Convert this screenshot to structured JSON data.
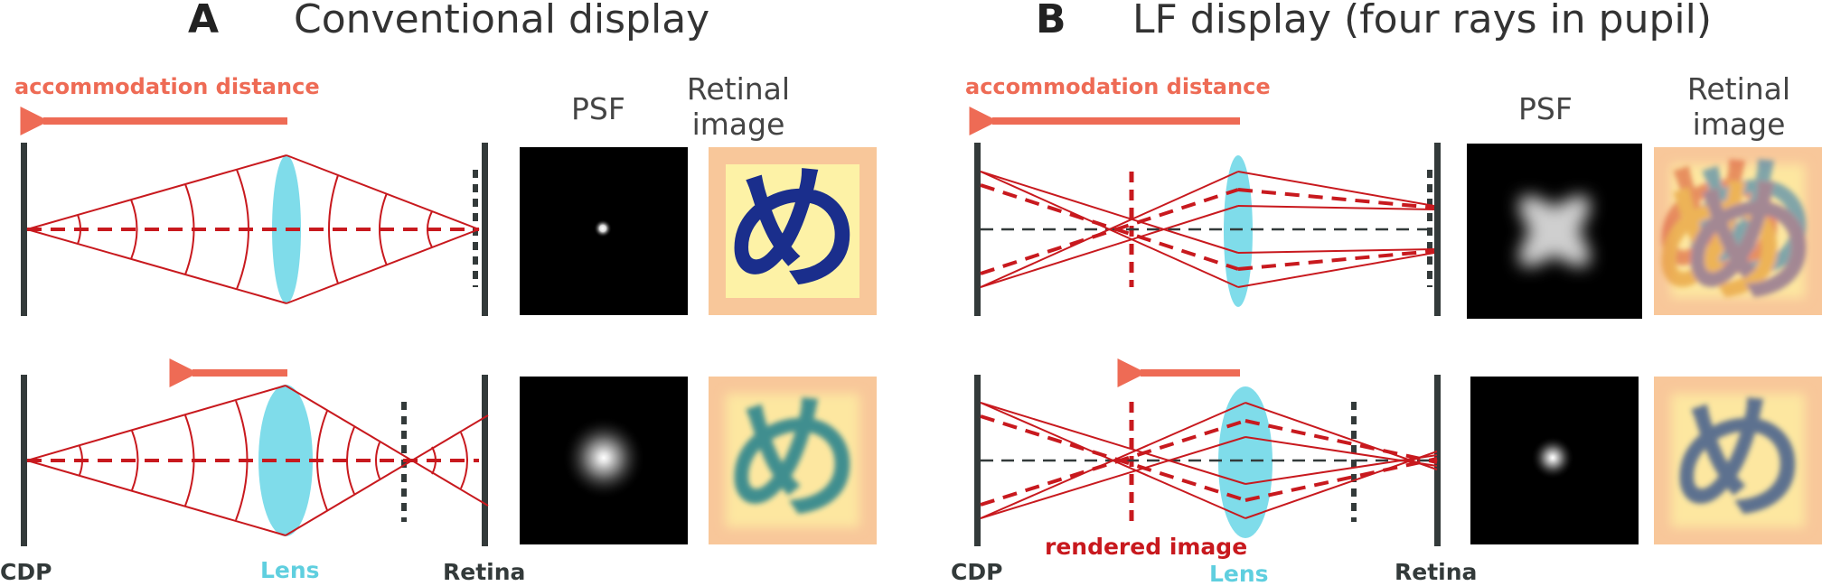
{
  "panel_a": {
    "letter": "A",
    "title": "Conventional display",
    "accommodation_label": "accommodation distance",
    "psf_heading": "PSF",
    "retinal_heading_line1": "Retinal",
    "retinal_heading_line2": "image",
    "label_cdp": "CDP",
    "label_lens": "Lens",
    "label_retina": "Retina"
  },
  "panel_b": {
    "letter": "B",
    "title": "LF display (four rays in pupil)",
    "accommodation_label": "accommodation distance",
    "psf_heading": "PSF",
    "retinal_heading_line1": "Retinal",
    "retinal_heading_line2": "image",
    "label_cdp": "CDP",
    "label_lens": "Lens",
    "label_retina": "Retina",
    "label_rendered": "rendered image"
  },
  "glyph": "め",
  "colors": {
    "ray": "#c8191e",
    "arrow": "#ee6b55",
    "lens": "#7fdcea",
    "lens_label": "#5fcfdf",
    "plane": "#333a3a",
    "retina_bg": "#f8c79a",
    "retina_inner": "#fdf2a6",
    "glyph": "#1a2e8c"
  }
}
